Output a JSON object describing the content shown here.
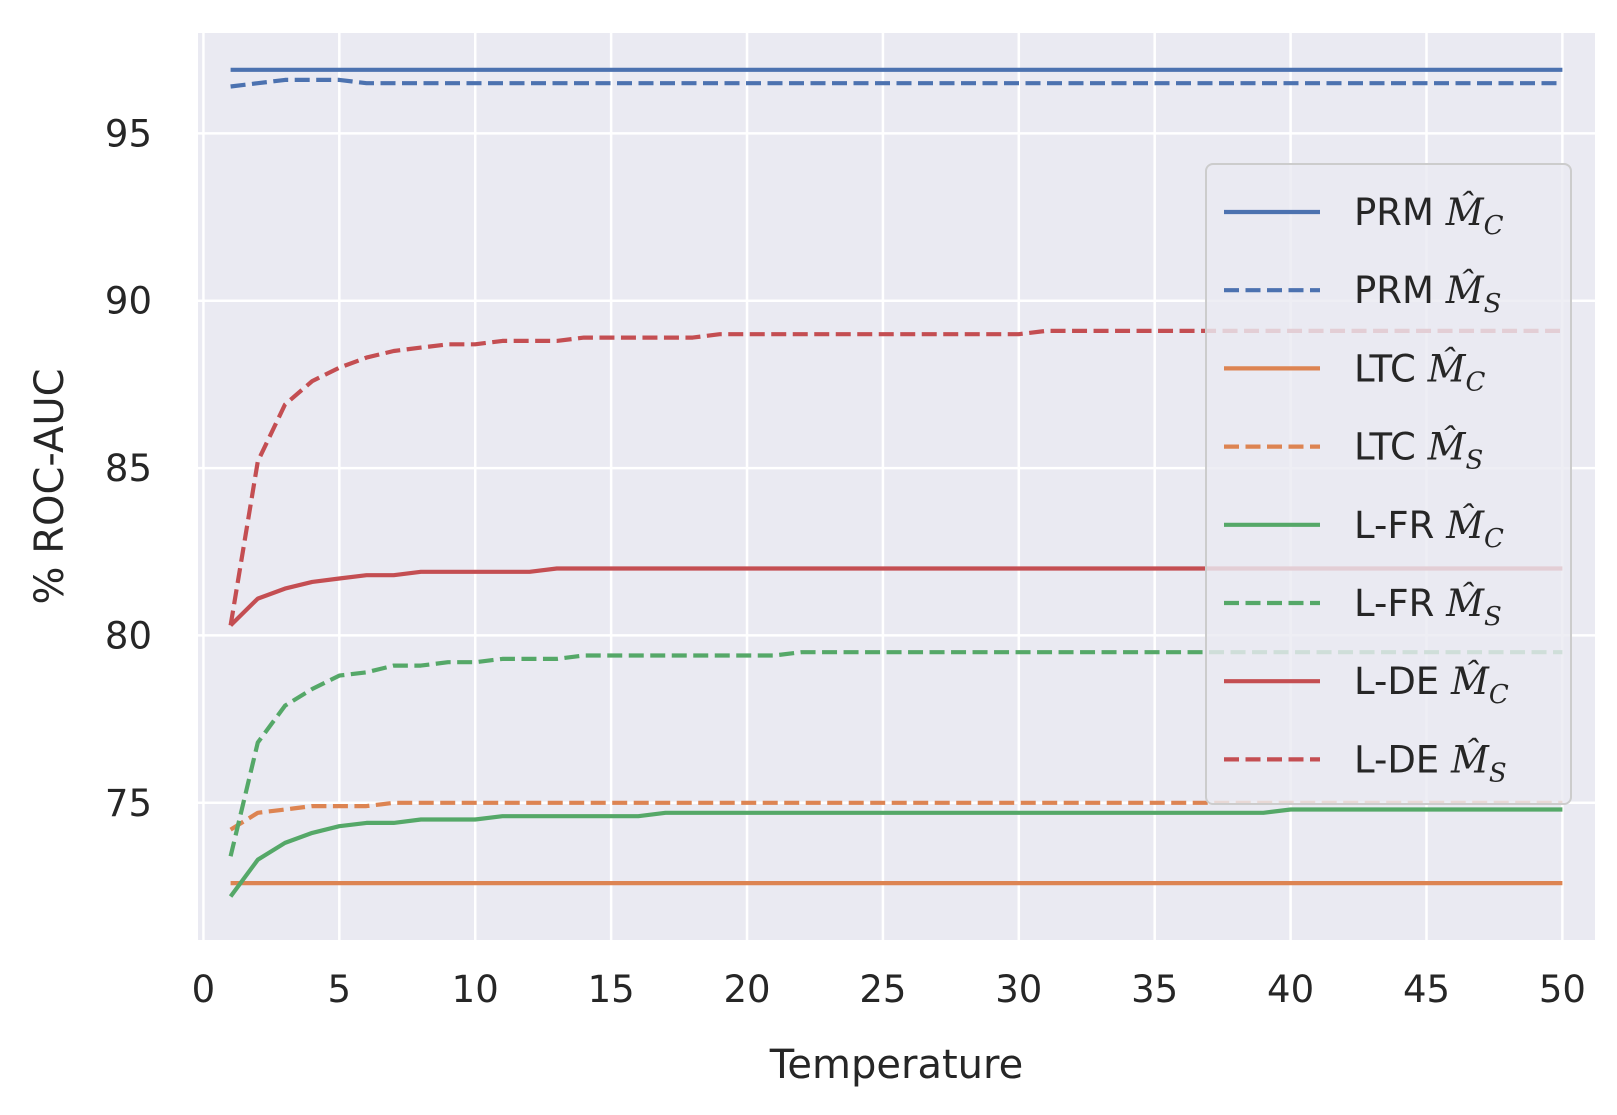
{
  "chart_data": {
    "type": "line",
    "xlabel": "Temperature",
    "ylabel": "% ROC-AUC",
    "xlim": [
      -0.2,
      51.2
    ],
    "ylim": [
      70.9,
      98.0
    ],
    "xticks": [
      0,
      5,
      10,
      15,
      20,
      25,
      30,
      35,
      40,
      45,
      50
    ],
    "yticks": [
      75,
      80,
      85,
      90,
      95
    ],
    "grid": true,
    "background": "#eaeaf2",
    "legend_position": "right",
    "series": [
      {
        "name": "PRM M̂C",
        "label_prefix": "PRM",
        "label_sub": "C",
        "color": "#4c72b0",
        "style": "solid",
        "x": [
          1,
          5,
          10,
          20,
          30,
          40,
          50
        ],
        "y": [
          96.9,
          96.9,
          96.9,
          96.9,
          96.9,
          96.9,
          96.9
        ]
      },
      {
        "name": "PRM M̂S",
        "label_prefix": "PRM",
        "label_sub": "S",
        "color": "#4c72b0",
        "style": "dashed",
        "x": [
          1,
          2,
          3,
          4,
          5,
          6,
          10,
          20,
          30,
          40,
          50
        ],
        "y": [
          96.4,
          96.5,
          96.6,
          96.6,
          96.6,
          96.5,
          96.5,
          96.5,
          96.5,
          96.5,
          96.5
        ]
      },
      {
        "name": "LTC M̂C",
        "label_prefix": "LTC",
        "label_sub": "C",
        "color": "#dd8452",
        "style": "solid",
        "x": [
          1,
          10,
          20,
          30,
          40,
          50
        ],
        "y": [
          72.6,
          72.6,
          72.6,
          72.6,
          72.6,
          72.6
        ]
      },
      {
        "name": "LTC M̂S",
        "label_prefix": "LTC",
        "label_sub": "S",
        "color": "#dd8452",
        "style": "dashed",
        "x": [
          1,
          2,
          3,
          4,
          5,
          6,
          7,
          8,
          10,
          20,
          30,
          40,
          50
        ],
        "y": [
          74.2,
          74.7,
          74.8,
          74.9,
          74.9,
          74.9,
          75.0,
          75.0,
          75.0,
          75.0,
          75.0,
          75.0,
          75.0
        ]
      },
      {
        "name": "L-FR M̂C",
        "label_prefix": "L-FR",
        "label_sub": "C",
        "color": "#55a868",
        "style": "solid",
        "x": [
          1,
          2,
          3,
          4,
          5,
          6,
          7,
          8,
          9,
          10,
          11,
          12,
          13,
          14,
          15,
          16,
          17,
          18,
          20,
          25,
          30,
          35,
          39,
          40,
          45,
          50
        ],
        "y": [
          72.2,
          73.3,
          73.8,
          74.1,
          74.3,
          74.4,
          74.4,
          74.5,
          74.5,
          74.5,
          74.6,
          74.6,
          74.6,
          74.6,
          74.6,
          74.6,
          74.7,
          74.7,
          74.7,
          74.7,
          74.7,
          74.7,
          74.7,
          74.8,
          74.8,
          74.8
        ]
      },
      {
        "name": "L-FR M̂S",
        "label_prefix": "L-FR",
        "label_sub": "S",
        "color": "#55a868",
        "style": "dashed",
        "x": [
          1,
          2,
          3,
          4,
          5,
          6,
          7,
          8,
          9,
          10,
          11,
          12,
          13,
          14,
          15,
          16,
          17,
          18,
          19,
          20,
          21,
          22,
          25,
          30,
          35,
          40,
          45,
          50
        ],
        "y": [
          73.4,
          76.8,
          77.9,
          78.4,
          78.8,
          78.9,
          79.1,
          79.1,
          79.2,
          79.2,
          79.3,
          79.3,
          79.3,
          79.4,
          79.4,
          79.4,
          79.4,
          79.4,
          79.4,
          79.4,
          79.4,
          79.5,
          79.5,
          79.5,
          79.5,
          79.5,
          79.5,
          79.5
        ]
      },
      {
        "name": "L-DE M̂C",
        "label_prefix": "L-DE",
        "label_sub": "C",
        "color": "#c44e52",
        "style": "solid",
        "x": [
          1,
          2,
          3,
          4,
          5,
          6,
          7,
          8,
          9,
          10,
          11,
          12,
          13,
          14,
          15,
          20,
          25,
          30,
          35,
          40,
          45,
          50
        ],
        "y": [
          80.3,
          81.1,
          81.4,
          81.6,
          81.7,
          81.8,
          81.8,
          81.9,
          81.9,
          81.9,
          81.9,
          81.9,
          82.0,
          82.0,
          82.0,
          82.0,
          82.0,
          82.0,
          82.0,
          82.0,
          82.0,
          82.0
        ]
      },
      {
        "name": "L-DE M̂S",
        "label_prefix": "L-DE",
        "label_sub": "S",
        "color": "#c44e52",
        "style": "dashed",
        "x": [
          1,
          2,
          3,
          4,
          5,
          6,
          7,
          8,
          9,
          10,
          11,
          12,
          13,
          14,
          15,
          16,
          17,
          18,
          19,
          20,
          25,
          30,
          31,
          35,
          40,
          45,
          50
        ],
        "y": [
          80.3,
          85.2,
          86.9,
          87.6,
          88.0,
          88.3,
          88.5,
          88.6,
          88.7,
          88.7,
          88.8,
          88.8,
          88.8,
          88.9,
          88.9,
          88.9,
          88.9,
          88.9,
          89.0,
          89.0,
          89.0,
          89.0,
          89.1,
          89.1,
          89.1,
          89.1,
          89.1
        ]
      }
    ]
  }
}
